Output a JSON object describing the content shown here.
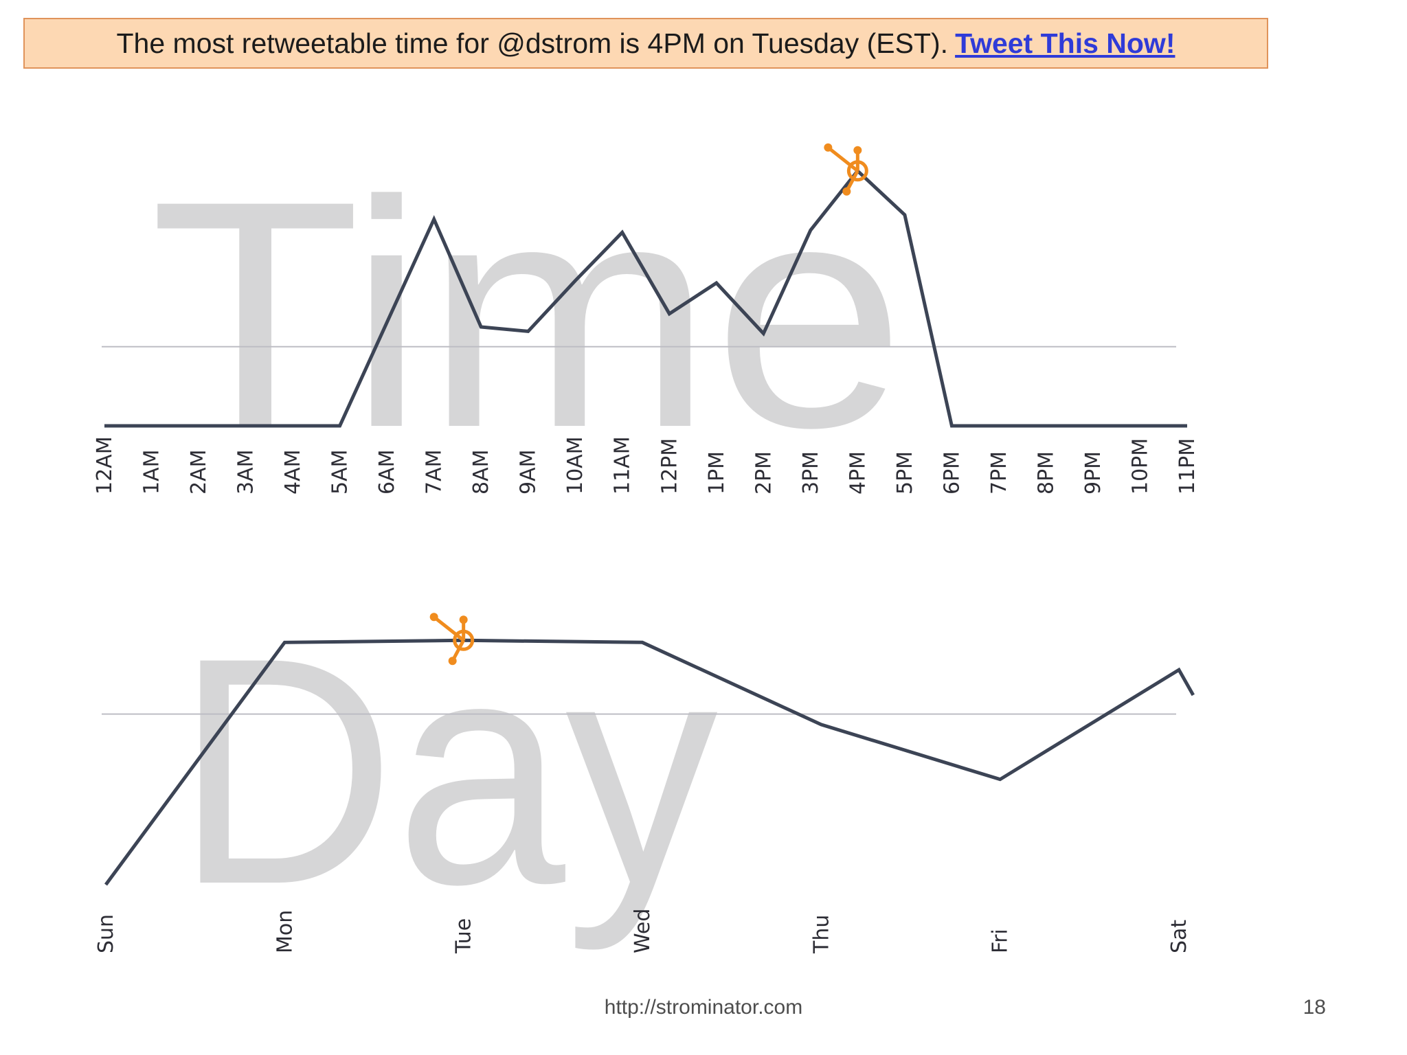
{
  "banner": {
    "text": "The most retweetable time for @dstrom is 4PM on Tuesday (EST).",
    "link": "Tweet This Now!"
  },
  "colors": {
    "banner_bg": "#fdd8b3",
    "banner_border": "#e0935a",
    "link": "#2f3bd8",
    "line": "#3c4455",
    "marker": "#f08c1e",
    "watermark": "#d6d6d7"
  },
  "chart_data": [
    {
      "type": "line",
      "watermark": "Time",
      "categories": [
        "12AM",
        "1AM",
        "2AM",
        "3AM",
        "4AM",
        "5AM",
        "6AM",
        "7AM",
        "8AM",
        "9AM",
        "10AM",
        "11AM",
        "12PM",
        "1PM",
        "2PM",
        "3PM",
        "4PM",
        "5PM",
        "6PM",
        "7PM",
        "8PM",
        "9PM",
        "10PM",
        "11PM"
      ],
      "values": [
        0,
        0,
        0,
        0,
        0,
        0,
        47,
        94,
        45,
        43,
        66,
        88,
        51,
        65,
        42,
        89,
        116,
        96,
        0,
        0,
        0,
        0,
        0,
        0
      ],
      "reference_line": 36,
      "ylim": [
        0,
        120
      ],
      "highlight": {
        "category": "4PM",
        "icon": "hubspot-sprocket-icon"
      }
    },
    {
      "type": "line",
      "watermark": "Day",
      "categories": [
        "Sun",
        "Mon",
        "Tue",
        "Wed",
        "Thu",
        "Fri",
        "Sat"
      ],
      "x": [
        0,
        1,
        2,
        3,
        4,
        5,
        6,
        6.08
      ],
      "values": [
        0,
        115,
        116,
        115,
        76,
        50,
        102,
        90
      ],
      "reference_line": 81,
      "ylim": [
        0,
        120
      ],
      "highlight": {
        "category": "Tue",
        "icon": "hubspot-sprocket-icon"
      }
    }
  ],
  "footer": {
    "url": "http://strominator.com",
    "page": "18"
  }
}
